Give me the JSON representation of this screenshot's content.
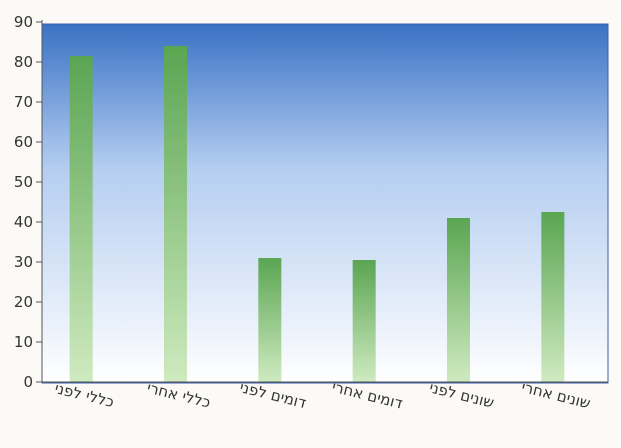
{
  "chart_data": {
    "type": "bar",
    "title": "",
    "xlabel": "",
    "ylabel": "",
    "categories": [
      "כללי לפני",
      "כללי אחרי",
      "דומים לפני",
      "דומים אחרי",
      "שונים לפני",
      "שונים אחרי"
    ],
    "values": [
      81.5,
      84,
      31,
      30.5,
      41,
      42.5
    ],
    "ylim": [
      0,
      90
    ],
    "yticks": [
      0,
      10,
      20,
      30,
      40,
      50,
      60,
      70,
      80,
      90
    ],
    "grid": false,
    "legend": "none",
    "colors": {
      "bar_top": "#5aa552",
      "bar_bottom": "#cfeac0",
      "plot_top": "#3a72c4",
      "plot_mid": "#b4cdf0",
      "plot_bottom": "#ffffff",
      "axis": "#555555",
      "text": "#333333"
    }
  }
}
